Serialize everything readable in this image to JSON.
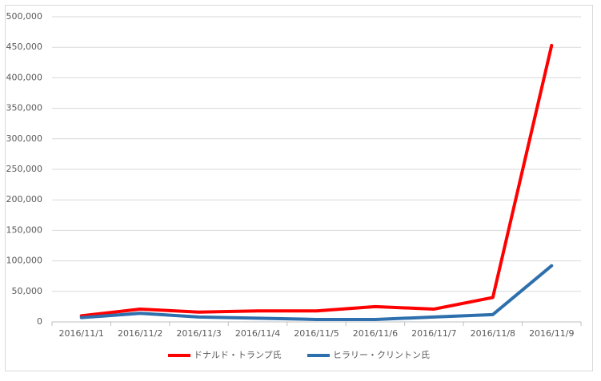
{
  "chart_data": {
    "type": "line",
    "categories": [
      "2016/11/1",
      "2016/11/2",
      "2016/11/3",
      "2016/11/4",
      "2016/11/5",
      "2016/11/6",
      "2016/11/7",
      "2016/11/8",
      "2016/11/9"
    ],
    "series": [
      {
        "name": "ドナルド・トランプ氏",
        "color": "#ff0000",
        "values": [
          10000,
          21000,
          16000,
          18000,
          18000,
          25000,
          21000,
          40000,
          453000
        ]
      },
      {
        "name": "ヒラリー・クリントン氏",
        "color": "#2e6fad",
        "values": [
          7000,
          14000,
          8000,
          6000,
          4000,
          4000,
          8000,
          12000,
          92000
        ]
      }
    ],
    "ylim": [
      0,
      500000
    ],
    "yticks": [
      0,
      {
        "value": 50000,
        "label": "50,000"
      },
      {
        "value": 100000,
        "label": "100,000"
      },
      {
        "value": 150000,
        "label": "150,000"
      },
      {
        "value": 200000,
        "label": "200,000"
      },
      {
        "value": 250000,
        "label": "250,000"
      },
      {
        "value": 300000,
        "label": "300,000"
      },
      {
        "value": 350000,
        "label": "350,000"
      },
      {
        "value": 400000,
        "label": "400,000"
      },
      {
        "value": 450000,
        "label": "450,000"
      },
      {
        "value": 500000,
        "label": "500,000"
      }
    ],
    "grid": true,
    "legend": "bottom"
  }
}
